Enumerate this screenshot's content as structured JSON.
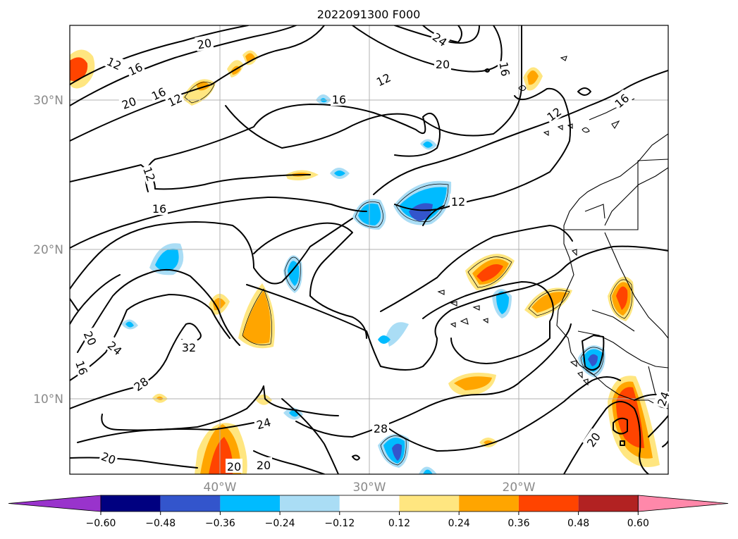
{
  "title": "2022091300 F000",
  "map": {
    "lat_ticks": [
      "30°N",
      "20°N",
      "10°N"
    ],
    "lon_ticks": [
      "40°W",
      "30°W",
      "20°W"
    ]
  },
  "contour_labels": [
    {
      "id": "c12a",
      "text": "12"
    },
    {
      "id": "c16a",
      "text": "16"
    },
    {
      "id": "c20a",
      "text": "20"
    },
    {
      "id": "c16b",
      "text": "16"
    },
    {
      "id": "c12b",
      "text": "12"
    },
    {
      "id": "c20b",
      "text": "20"
    },
    {
      "id": "c24a",
      "text": "24"
    },
    {
      "id": "c20c",
      "text": "20"
    },
    {
      "id": "c16c",
      "text": "16"
    },
    {
      "id": "c12c",
      "text": "12"
    },
    {
      "id": "c16d",
      "text": "16"
    },
    {
      "id": "c12d",
      "text": "12"
    },
    {
      "id": "c16e",
      "text": "16"
    },
    {
      "id": "c12e",
      "text": "12"
    },
    {
      "id": "c16f",
      "text": "16"
    },
    {
      "id": "c12f",
      "text": "12"
    },
    {
      "id": "c20d",
      "text": "20"
    },
    {
      "id": "c24b",
      "text": "24"
    },
    {
      "id": "c16g",
      "text": "16"
    },
    {
      "id": "c28a",
      "text": "28"
    },
    {
      "id": "c32",
      "text": "32"
    },
    {
      "id": "c24c",
      "text": "24"
    },
    {
      "id": "c28b",
      "text": "28"
    },
    {
      "id": "c20e",
      "text": "20"
    },
    {
      "id": "c20f",
      "text": "20"
    },
    {
      "id": "c20g",
      "text": "20"
    },
    {
      "id": "c20h",
      "text": "20"
    },
    {
      "id": "c24d",
      "text": "24"
    }
  ],
  "colorbar": {
    "ticks": [
      "−0.60",
      "−0.48",
      "−0.36",
      "−0.24",
      "−0.12",
      "0.12",
      "0.24",
      "0.36",
      "0.48",
      "0.60"
    ],
    "colors": [
      "#9933cc",
      "#000080",
      "#3355cc",
      "#00bbff",
      "#aaddf5",
      "#ffffff",
      "#ffe680",
      "#ffa500",
      "#ff4400",
      "#b22222",
      "#ff88aa"
    ]
  },
  "colors": {
    "grid": "#b0b0b0",
    "tick_label": "#8a8a8a"
  }
}
